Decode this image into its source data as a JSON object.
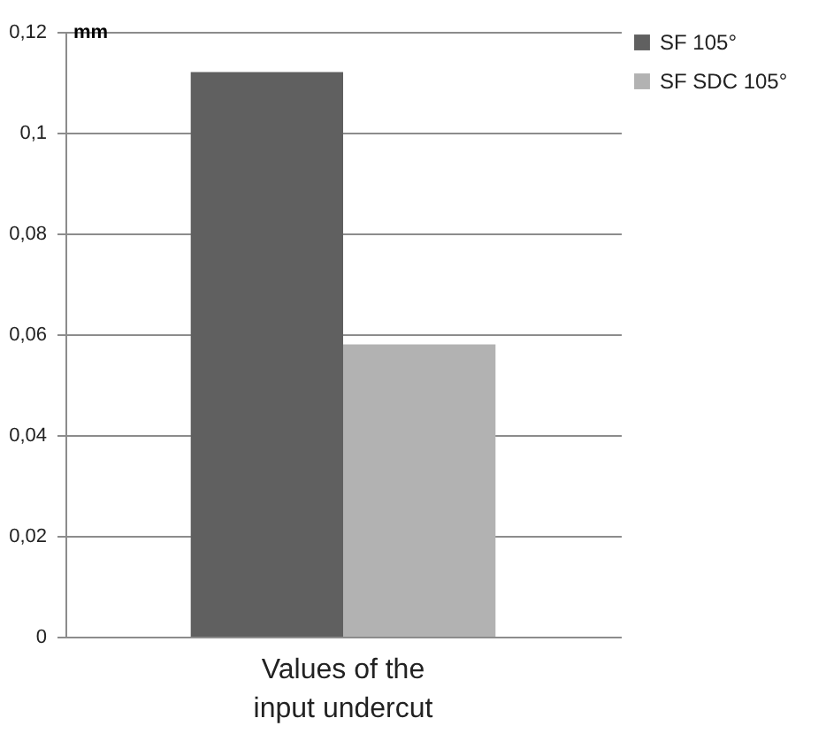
{
  "chart_data": {
    "type": "bar",
    "categories": [
      "Values of the input undercut"
    ],
    "ylabel": "mm",
    "series": [
      {
        "name": "SF 105°",
        "color": "#606060",
        "values": [
          0.112
        ]
      },
      {
        "name": "SF SDC 105°",
        "color": "#b2b2b2",
        "values": [
          0.058
        ]
      }
    ],
    "ylim": [
      0,
      0.12
    ],
    "yticks": [
      0,
      {
        "value": 0.02,
        "label": "0,02"
      },
      {
        "value": 0.04,
        "label": "0,04"
      },
      {
        "value": 0.06,
        "label": "0,06"
      },
      {
        "value": 0.08,
        "label": "0,08"
      },
      {
        "value": 0.1,
        "label": "0,1"
      },
      {
        "value": 0.12,
        "label": "0,12"
      }
    ],
    "grid": "y",
    "legend": "right"
  }
}
